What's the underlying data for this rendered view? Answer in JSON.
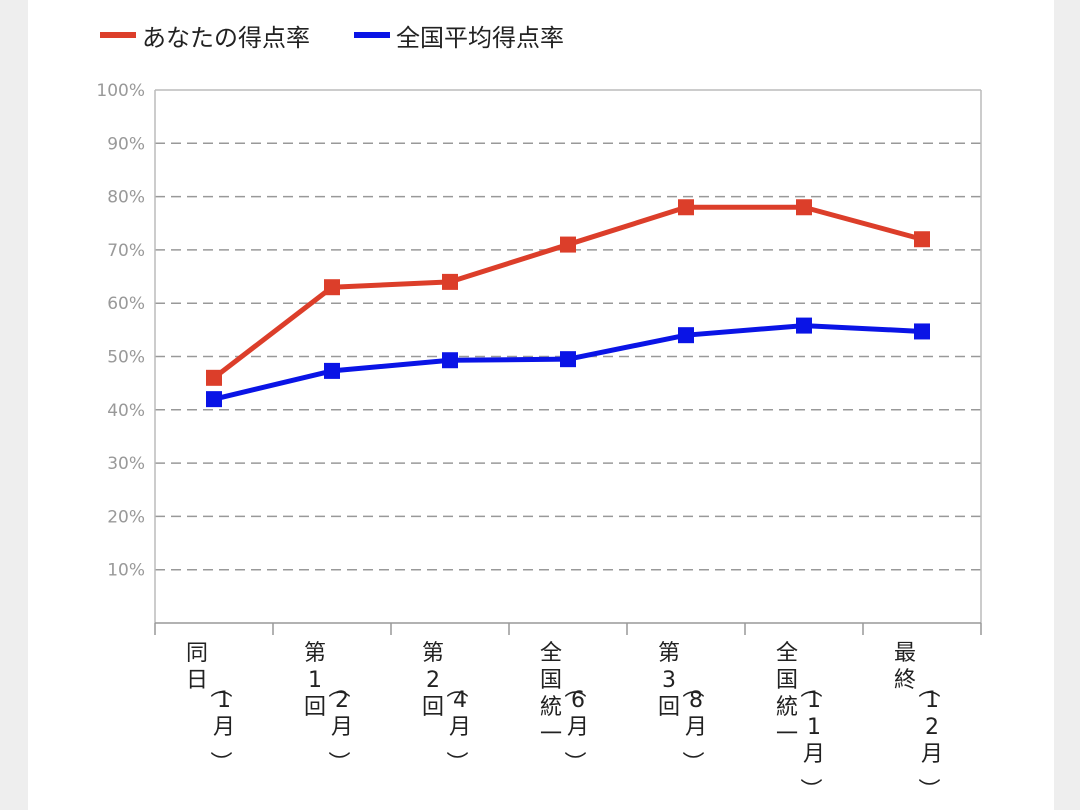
{
  "colors": {
    "series_0": "#dc3e2a",
    "series_1": "#0a14e6",
    "grid": "#999999",
    "axis": "#bbbbbb"
  },
  "chart_data": {
    "type": "line",
    "title": "",
    "xlabel": "",
    "ylabel": "",
    "ylim": [
      0,
      100
    ],
    "y_ticks": [
      "10%",
      "20%",
      "30%",
      "40%",
      "50%",
      "60%",
      "70%",
      "80%",
      "90%",
      "100%"
    ],
    "categories": [
      {
        "main": "同日",
        "sub": "（1月）"
      },
      {
        "main": "第1回",
        "sub": "（2月）"
      },
      {
        "main": "第2回",
        "sub": "（4月）"
      },
      {
        "main": "全国統一",
        "sub": "（6月）"
      },
      {
        "main": "第3回",
        "sub": "（8月）"
      },
      {
        "main": "全国統一",
        "sub": "（11月）"
      },
      {
        "main": "最終",
        "sub": "（12月）"
      }
    ],
    "series": [
      {
        "name": "あなたの得点率",
        "values": [
          46,
          63,
          64,
          71,
          78,
          78,
          72
        ]
      },
      {
        "name": "全国平均得点率",
        "values": [
          42,
          47.3,
          49.3,
          49.5,
          54,
          55.8,
          54.7
        ]
      }
    ],
    "grid": true,
    "legend": "top-left"
  }
}
